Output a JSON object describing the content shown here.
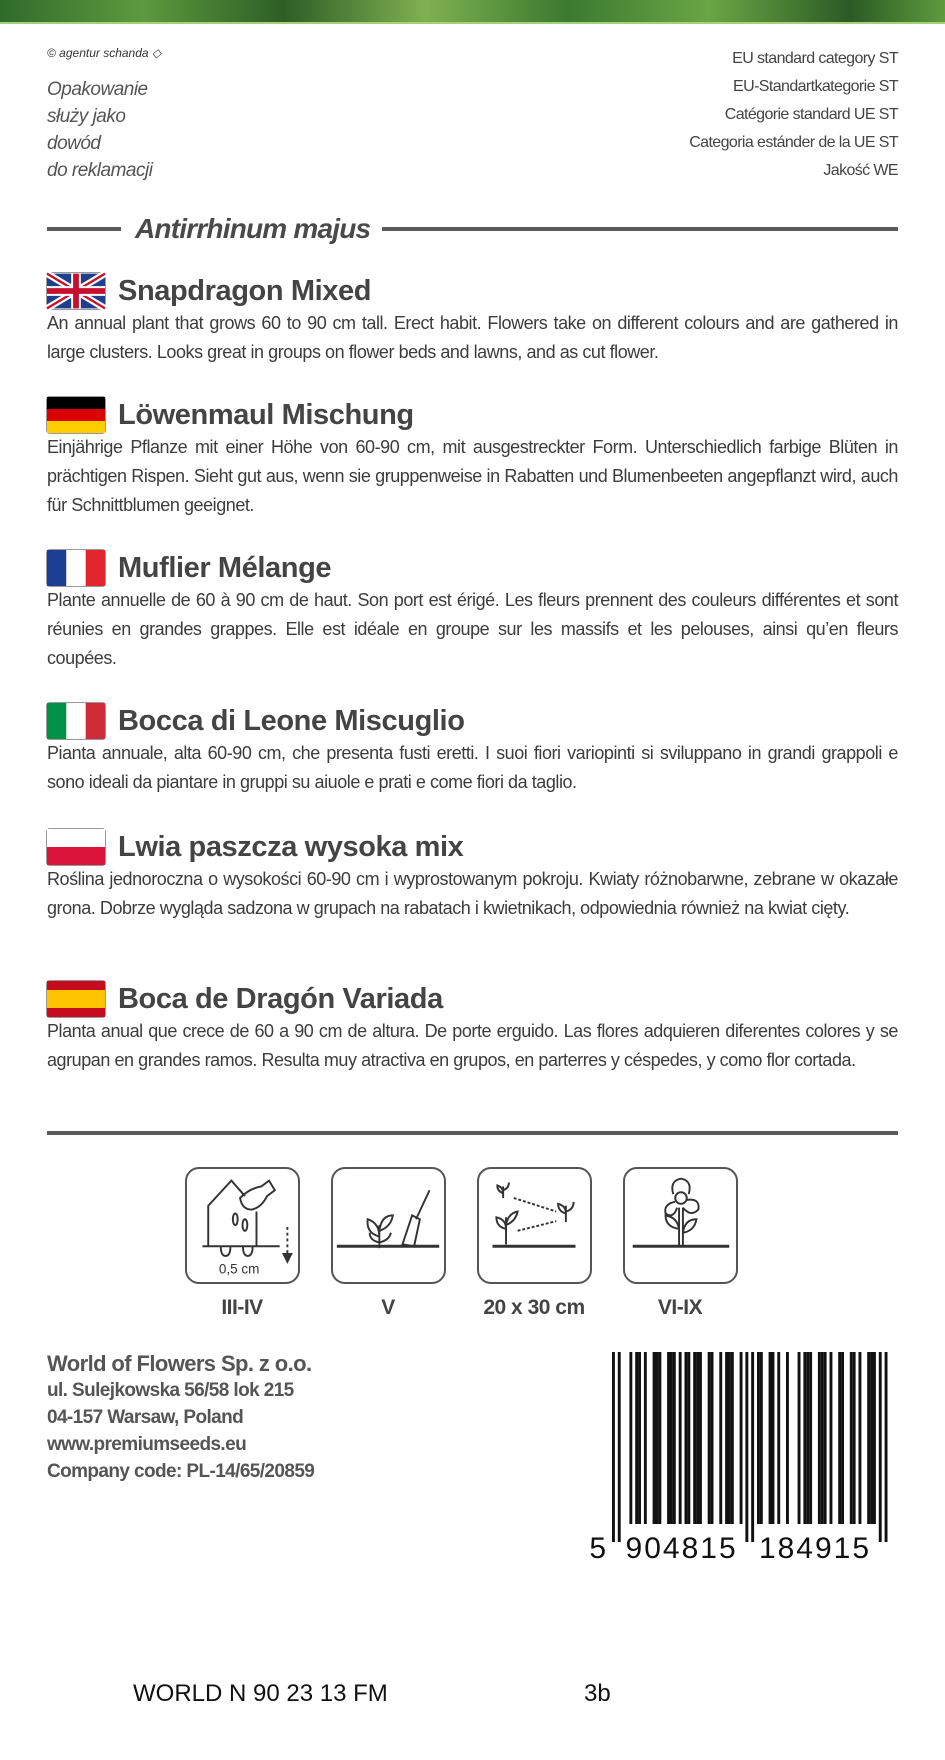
{
  "header": {
    "credit": "© agentur schanda",
    "claim_lines": [
      "Opakowanie",
      "służy jako",
      "dowód",
      "do reklamacji"
    ],
    "categories": [
      "EU standard category ST",
      "EU-Standartkategorie ST",
      "Catégorie standard UE ST",
      "Categoria estánder de la UE ST",
      "Jakość WE"
    ]
  },
  "latin_name": "Antirrhinum majus",
  "sections": [
    {
      "flag": "uk",
      "name": "Snapdragon Mixed",
      "text": "An annual plant that grows 60 to 90 cm tall. Erect habit. Flowers take on different colours and are gathered in large clusters. Looks great in groups on flower beds and lawns, and as cut flower."
    },
    {
      "flag": "de",
      "name": "Löwenmaul Mischung",
      "text": "Einjährige Pflanze mit einer Höhe von 60-90 cm, mit ausgestreckter Form. Unterschiedlich farbige Blüten in prächtigen Rispen. Sieht gut aus, wenn sie gruppenweise in Rabatten und Blumenbeeten angepflanzt wird, auch für Schnittblumen geeignet."
    },
    {
      "flag": "fr",
      "name": "Muflier Mélange",
      "text": "Plante annuelle de 60 à 90 cm de haut. Son port est érigé. Les fleurs prennent des couleurs différentes et sont réunies en grandes grappes. Elle est idéale en groupe sur les massifs et les pelouses, ainsi qu’en fleurs coupées."
    },
    {
      "flag": "it",
      "name": "Bocca di Leone Miscuglio",
      "text": "Pianta annuale, alta 60-90 cm, che presenta fusti eretti. I suoi fiori variopinti si sviluppano in grandi grappoli e sono ideali da piantare in gruppi su aiuole e prati e come fiori da taglio."
    },
    {
      "flag": "pl",
      "name": "Lwia paszcza wysoka mix",
      "text": "Roślina jednoroczna o wysokości 60-90 cm i wyprostowanym pokroju. Kwiaty różnobarwne, zebrane w okazałe grona. Dobrze wygląda sadzona w grupach na rabatach i kwietnikach, odpowiednia również na kwiat cięty."
    },
    {
      "flag": "es",
      "name": "Boca de Dragón Variada",
      "text": "Planta anual que crece de 60 a 90 cm de altura. De porte erguido. Las flores adquieren diferentes colores y se agrupan en grandes ramos. Resulta muy atractiva en grupos, en parterres y céspedes, y como flor cortada."
    }
  ],
  "pictograms": [
    {
      "icon": "sowing-under-cover-icon",
      "depth": "0,5 cm",
      "label": "III-IV"
    },
    {
      "icon": "transplanting-icon",
      "label": "V"
    },
    {
      "icon": "spacing-icon",
      "label": "20 x 30 cm"
    },
    {
      "icon": "flowering-icon",
      "label": "VI-IX"
    }
  ],
  "company": {
    "name": "World of Flowers Sp. z o.o.",
    "street": "ul. Sulejkowska 56/58 lok 215",
    "city": "04-157 Warsaw, Poland",
    "web": "www.premiumseeds.eu",
    "code": "Company code: PL-14/65/20859"
  },
  "barcode": {
    "ean": "5904815184915"
  },
  "footer": {
    "code": "WORLD N 90 23 13  FM",
    "variant": "3b"
  }
}
